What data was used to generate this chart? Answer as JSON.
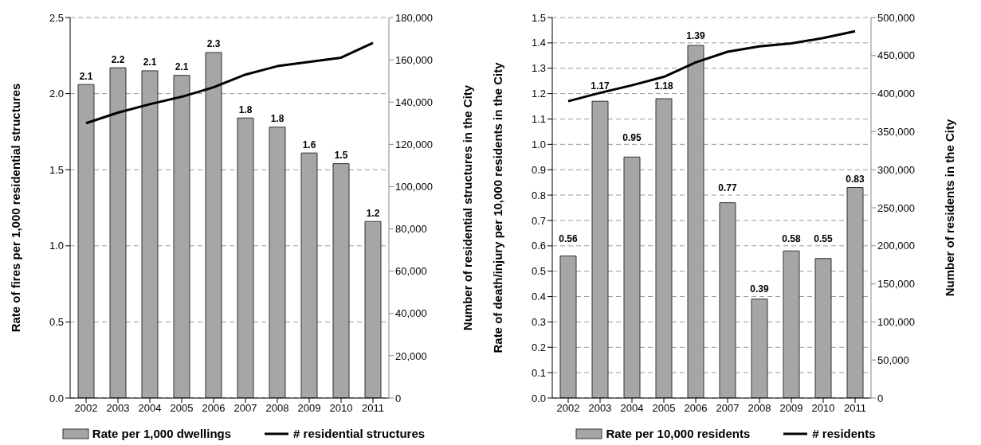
{
  "chart_data": [
    {
      "type": "bar",
      "categories": [
        "2002",
        "2003",
        "2004",
        "2005",
        "2006",
        "2007",
        "2008",
        "2009",
        "2010",
        "2011"
      ],
      "ylabel": "Rate of fires per 1,000 residential structures",
      "y2label": "Number of residential structures in the City",
      "ylim": [
        0,
        2.5
      ],
      "yticks": [
        {
          "value": 0,
          "label": "0.0"
        },
        0.5,
        {
          "value": 1,
          "label": "1.0"
        },
        1.5,
        {
          "value": 2,
          "label": "2.0"
        },
        2.5
      ],
      "y2lim": [
        0,
        180000
      ],
      "y2ticks": [
        0,
        {
          "value": 20000,
          "label": "20,000"
        },
        {
          "value": 40000,
          "label": "40,000"
        },
        {
          "value": 60000,
          "label": "60,000"
        },
        {
          "value": 80000,
          "label": "80,000"
        },
        {
          "value": 100000,
          "label": "100,000"
        },
        {
          "value": 120000,
          "label": "120,000"
        },
        {
          "value": 140000,
          "label": "140,000"
        },
        {
          "value": 160000,
          "label": "160,000"
        },
        {
          "value": 180000,
          "label": "180,000"
        }
      ],
      "grid": "y",
      "legend": "bottom",
      "marker": "none",
      "series": [
        {
          "name": "Rate per 1,000  dwellings",
          "color": "#a6a6a6",
          "values": [
            2.06,
            2.17,
            2.15,
            2.12,
            2.27,
            1.84,
            1.78,
            1.61,
            1.54,
            1.16
          ],
          "value_labels": [
            "2.1",
            "2.2",
            "2.1",
            "2.1",
            "2.3",
            "1.8",
            "1.8",
            "1.6",
            "1.5",
            "1.2"
          ]
        },
        {
          "name": "# residential structures",
          "type": "line",
          "axis": "y2",
          "color": "#000000",
          "values": [
            130000,
            135000,
            139000,
            142500,
            147000,
            153000,
            157000,
            159000,
            161000,
            168000
          ]
        }
      ]
    },
    {
      "type": "bar",
      "categories": [
        "2002",
        "2003",
        "2004",
        "2005",
        "2006",
        "2007",
        "2008",
        "2009",
        "2010",
        "2011"
      ],
      "ylabel": "Rate of death/injury per 10,000  residents in the City",
      "y2label": "Number of residents in the City",
      "ylim": [
        0,
        1.5
      ],
      "yticks": [
        {
          "value": 0,
          "label": "0.0"
        },
        0.1,
        0.2,
        0.3,
        0.4,
        0.5,
        0.6,
        0.7,
        0.8,
        0.9,
        {
          "value": 1,
          "label": "1.0"
        },
        1.1,
        1.2,
        1.3,
        1.4,
        1.5
      ],
      "y2lim": [
        0,
        500000
      ],
      "y2ticks": [
        0,
        {
          "value": 50000,
          "label": "50,000"
        },
        {
          "value": 100000,
          "label": "100,000"
        },
        {
          "value": 150000,
          "label": "150,000"
        },
        {
          "value": 200000,
          "label": "200,000"
        },
        {
          "value": 250000,
          "label": "250,000"
        },
        {
          "value": 300000,
          "label": "300,000"
        },
        {
          "value": 350000,
          "label": "350,000"
        },
        {
          "value": 400000,
          "label": "400,000"
        },
        {
          "value": 450000,
          "label": "450,000"
        },
        {
          "value": 500000,
          "label": "500,000"
        }
      ],
      "grid": "y",
      "legend": "bottom",
      "marker": "none",
      "series": [
        {
          "name": "Rate per 10,000 residents",
          "color": "#a6a6a6",
          "values": [
            0.56,
            1.17,
            0.95,
            1.18,
            1.39,
            0.77,
            0.39,
            0.58,
            0.55,
            0.83
          ],
          "value_labels": [
            "0.56",
            "1.17",
            "0.95",
            "1.18",
            "1.39",
            "0.77",
            "0.39",
            "0.58",
            "0.55",
            "0.83"
          ]
        },
        {
          "name": "# residents",
          "type": "line",
          "axis": "y2",
          "color": "#000000",
          "values": [
            390000,
            401000,
            411000,
            422000,
            441000,
            455000,
            462000,
            466000,
            473000,
            482000
          ]
        }
      ]
    }
  ]
}
